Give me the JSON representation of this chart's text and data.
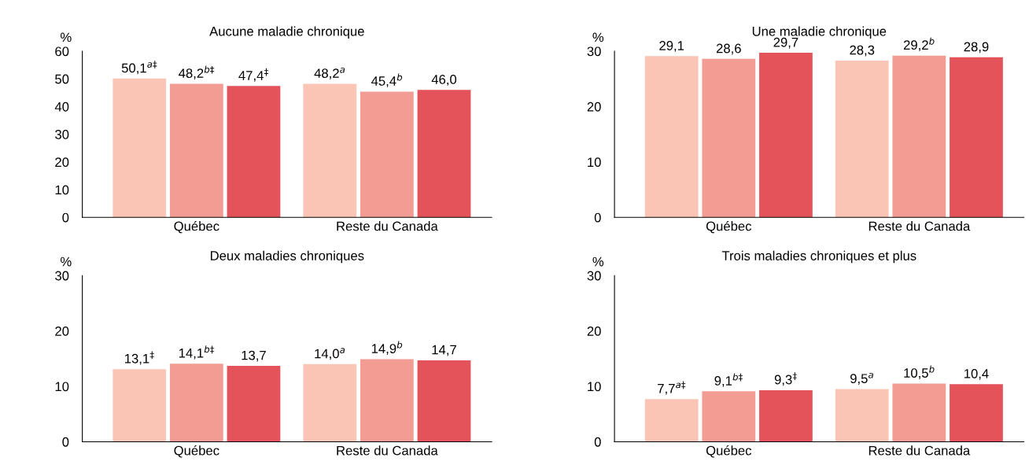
{
  "chart_data": [
    {
      "type": "bar",
      "title": "Aucune maladie chronique",
      "ylabel": "%",
      "categories": [
        "Québec",
        "Reste du Canada"
      ],
      "ylim": [
        0,
        60
      ],
      "yticks": [
        0,
        10,
        20,
        30,
        40,
        50,
        60
      ],
      "grid": false,
      "legend": false,
      "series": [
        {
          "color": "#fbc5b5",
          "values": [
            50.1,
            48.2
          ],
          "value_labels": [
            "50,1$^{a‡}$",
            "48,2$^{a}$"
          ]
        },
        {
          "color": "#f39c93",
          "values": [
            48.2,
            45.4
          ],
          "value_labels": [
            "48,2$^{b‡}$",
            "45,4$^{b}$"
          ]
        },
        {
          "color": "#e5535a",
          "values": [
            47.4,
            46.0
          ],
          "value_labels": [
            "47,4$^{‡}$",
            "46,0"
          ]
        }
      ]
    },
    {
      "type": "bar",
      "title": "Une maladie chronique",
      "ylabel": "%",
      "categories": [
        "Québec",
        "Reste du Canada"
      ],
      "ylim": [
        0,
        30
      ],
      "yticks": [
        0,
        10,
        20,
        30
      ],
      "grid": false,
      "legend": false,
      "series": [
        {
          "color": "#fbc5b5",
          "values": [
            29.1,
            28.3
          ],
          "value_labels": [
            "29,1",
            "28,3"
          ]
        },
        {
          "color": "#f39c93",
          "values": [
            28.6,
            29.2
          ],
          "value_labels": [
            "28,6",
            "29,2$^{b}$"
          ]
        },
        {
          "color": "#e5535a",
          "values": [
            29.7,
            28.9
          ],
          "value_labels": [
            "29,7",
            "28,9"
          ]
        }
      ]
    },
    {
      "type": "bar",
      "title": "Deux maladies chroniques",
      "ylabel": "%",
      "categories": [
        "Québec",
        "Reste du Canada"
      ],
      "ylim": [
        0,
        30
      ],
      "yticks": [
        0,
        10,
        20,
        30
      ],
      "grid": false,
      "legend": false,
      "series": [
        {
          "color": "#fbc5b5",
          "values": [
            13.1,
            14.0
          ],
          "value_labels": [
            "13,1$^{‡}$",
            "14,0$^{a}$"
          ]
        },
        {
          "color": "#f39c93",
          "values": [
            14.1,
            14.9
          ],
          "value_labels": [
            "14,1$^{b‡}$",
            "14,9$^{b}$"
          ]
        },
        {
          "color": "#e5535a",
          "values": [
            13.7,
            14.7
          ],
          "value_labels": [
            "13,7",
            "14,7"
          ]
        }
      ]
    },
    {
      "type": "bar",
      "title": "Trois maladies chroniques et plus",
      "ylabel": "%",
      "categories": [
        "Québec",
        "Reste du Canada"
      ],
      "ylim": [
        0,
        30
      ],
      "yticks": [
        0,
        10,
        20,
        30
      ],
      "grid": false,
      "legend": false,
      "series": [
        {
          "color": "#fbc5b5",
          "values": [
            7.7,
            9.5
          ],
          "value_labels": [
            "7,7$^{a‡}$",
            "9,5$^{a}$"
          ]
        },
        {
          "color": "#f39c93",
          "values": [
            9.1,
            10.5
          ],
          "value_labels": [
            "9,1$^{b‡}$",
            "10,5$^{b}$"
          ]
        },
        {
          "color": "#e5535a",
          "values": [
            9.3,
            10.4
          ],
          "value_labels": [
            "9,3$^{‡}$",
            "10,4"
          ]
        }
      ]
    }
  ]
}
